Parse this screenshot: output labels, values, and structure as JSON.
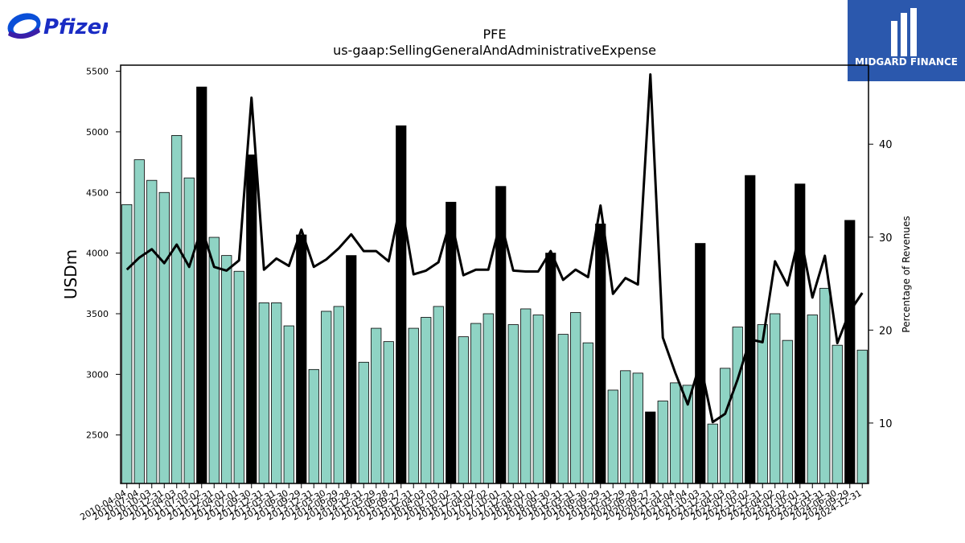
{
  "brand": {
    "left_logo_text": "Pfizer",
    "right_logo_text": "MIDGARD FINANCE"
  },
  "chart_data": {
    "type": "bar",
    "title": "PFE",
    "subtitle": "us-gaap:SellingGeneralAndAdministrativeExpense",
    "ylabel": "USDm",
    "y2label": "Percentage of Revenues",
    "ylim": [
      2100,
      5550
    ],
    "y2lim": [
      3.5,
      48.5
    ],
    "yticks": [
      2500,
      3000,
      3500,
      4000,
      4500,
      5000,
      5500
    ],
    "y2ticks": [
      10,
      20,
      30,
      40
    ],
    "grid": false,
    "colors": {
      "quarter_bar": "#8fd3c4",
      "annual_bar": "#000000",
      "line": "#000000"
    },
    "categories": [
      "2010-04-04",
      "2010-07-04",
      "2010-10-03",
      "2010-12-31",
      "2011-04-03",
      "2011-07-03",
      "2011-10-02",
      "2011-12-31",
      "2012-04-01",
      "2012-07-01",
      "2012-09-30",
      "2012-12-31",
      "2013-03-31",
      "2013-06-30",
      "2013-09-29",
      "2013-12-31",
      "2014-03-30",
      "2014-06-29",
      "2014-09-28",
      "2014-12-31",
      "2015-03-29",
      "2015-06-28",
      "2015-09-27",
      "2015-12-31",
      "2016-04-03",
      "2016-07-03",
      "2016-10-02",
      "2016-12-31",
      "2017-04-02",
      "2017-07-02",
      "2017-10-01",
      "2017-12-31",
      "2018-04-01",
      "2018-07-01",
      "2018-09-30",
      "2018-12-31",
      "2019-03-31",
      "2019-06-30",
      "2019-09-29",
      "2019-12-31",
      "2020-03-29",
      "2020-06-28",
      "2020-09-27",
      "2020-12-31",
      "2021-04-04",
      "2021-07-04",
      "2021-10-03",
      "2021-12-31",
      "2022-04-03",
      "2022-07-03",
      "2022-10-02",
      "2022-12-31",
      "2023-04-02",
      "2023-07-02",
      "2023-10-01",
      "2023-12-31",
      "2024-03-31",
      "2024-06-30",
      "2024-09-29",
      "2024-12-31"
    ],
    "series": [
      {
        "kind": "bar",
        "values": [
          4400,
          4770,
          4600,
          4500,
          4970,
          4620,
          5370,
          4130,
          3980,
          3850,
          4810,
          3590,
          3590,
          3400,
          4150,
          3040,
          3520,
          3560,
          3980,
          3100,
          3380,
          3270,
          5050,
          3380,
          3470,
          3560,
          4420,
          3310,
          3420,
          3500,
          4550,
          3410,
          3540,
          3490,
          4000,
          3330,
          3510,
          3260,
          4240,
          2870,
          3030,
          3010,
          2690,
          2780,
          2930,
          2910,
          4080,
          2590,
          3050,
          3390,
          4640,
          3410,
          3500,
          3280,
          4570,
          3490,
          3710,
          3240,
          4270,
          3200
        ],
        "annual": [
          false,
          false,
          false,
          false,
          false,
          false,
          true,
          false,
          false,
          false,
          true,
          false,
          false,
          false,
          true,
          false,
          false,
          false,
          true,
          false,
          false,
          false,
          true,
          false,
          false,
          false,
          true,
          false,
          false,
          false,
          true,
          false,
          false,
          false,
          true,
          false,
          false,
          false,
          true,
          false,
          false,
          false,
          true,
          false,
          false,
          false,
          true,
          false,
          false,
          false,
          true,
          false,
          false,
          false,
          true,
          false,
          false,
          false,
          true,
          false
        ]
      },
      {
        "kind": "line",
        "axis": "right",
        "values": [
          26.5,
          27.8,
          28.7,
          27.2,
          29.2,
          26.8,
          31.0,
          26.8,
          26.4,
          27.5,
          45.0,
          26.5,
          27.7,
          26.9,
          30.8,
          26.8,
          27.6,
          28.8,
          30.3,
          28.5,
          28.5,
          27.4,
          33.8,
          26.0,
          26.4,
          27.3,
          32.0,
          25.9,
          26.5,
          26.5,
          31.7,
          26.4,
          26.3,
          26.3,
          28.5,
          25.4,
          26.5,
          25.7,
          33.4,
          23.9,
          25.6,
          24.9,
          47.5,
          19.2,
          15.4,
          12.0,
          16.5,
          10.1,
          11.0,
          14.7,
          19.0,
          18.7,
          27.4,
          24.8,
          30.5,
          23.5,
          28.0,
          18.6,
          22.0,
          24.0
        ]
      }
    ]
  }
}
